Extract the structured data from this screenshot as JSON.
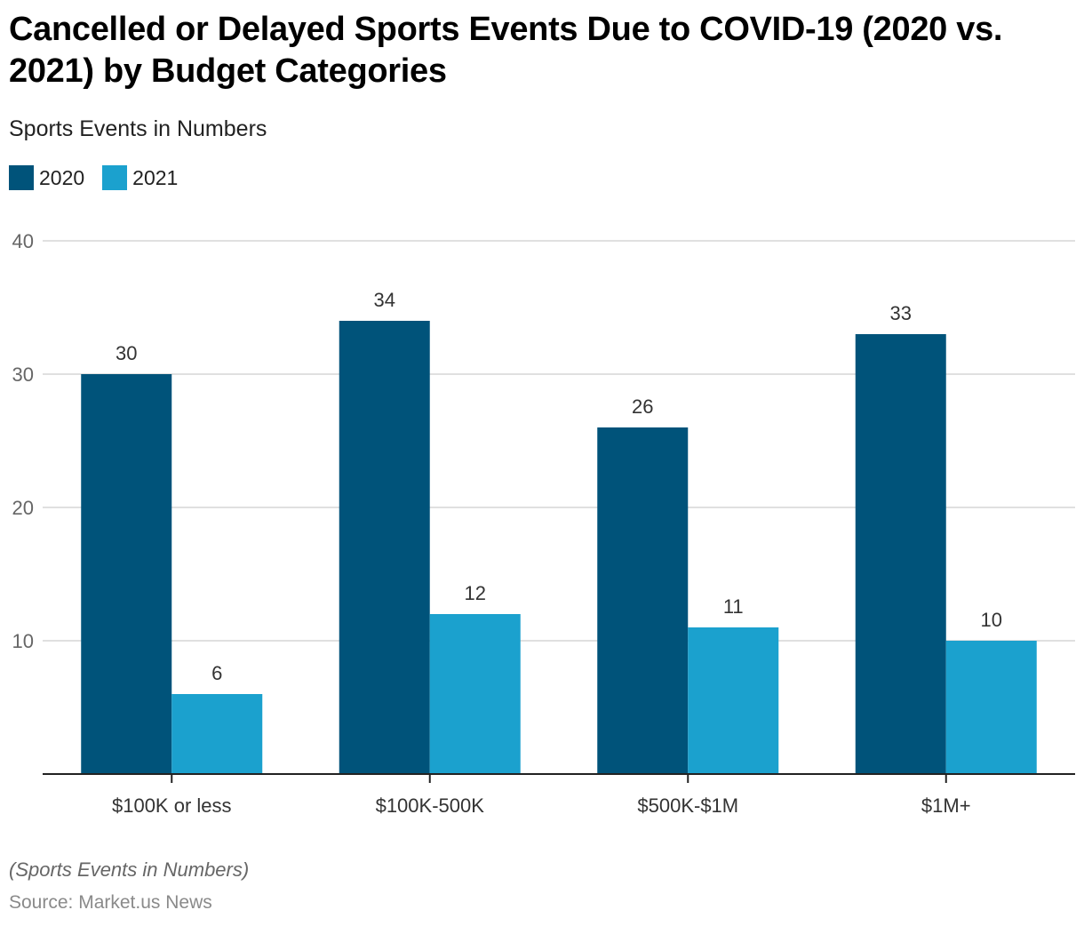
{
  "chart_data": {
    "type": "bar",
    "title": "Cancelled or Delayed Sports Events Due to COVID-19 (2020 vs. 2021) by Budget Categories",
    "subtitle": "Sports Events in Numbers",
    "xlabel": "",
    "ylabel": "",
    "categories": [
      "$100K or less",
      "$100K-500K",
      "$500K-$1M",
      "$1M+"
    ],
    "series": [
      {
        "name": "2020",
        "color": "#00537a",
        "values": [
          30,
          34,
          26,
          33
        ]
      },
      {
        "name": "2021",
        "color": "#1ba1ce",
        "values": [
          6,
          12,
          11,
          10
        ]
      }
    ],
    "ylim": [
      0,
      40
    ],
    "yticks": [
      10,
      20,
      30,
      40
    ],
    "grid": true,
    "legend": "top-left",
    "data_labels": true
  },
  "footer": {
    "note": "(Sports Events in Numbers)",
    "source": "Source: Market.us News"
  }
}
